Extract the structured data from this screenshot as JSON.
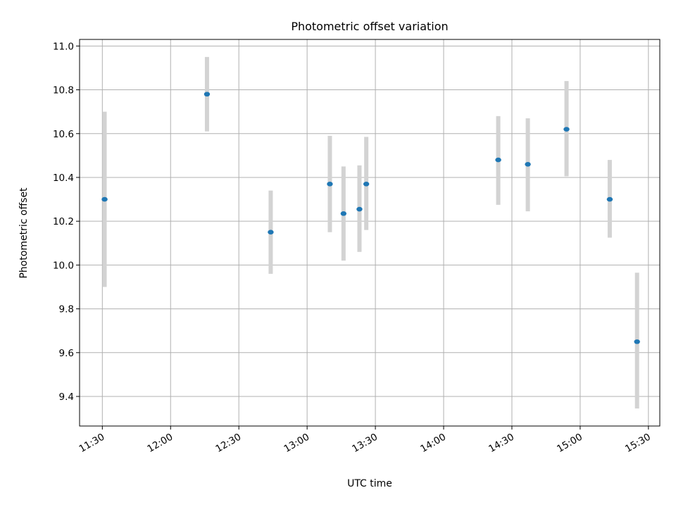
{
  "chart_data": {
    "type": "scatter",
    "title": "Photometric offset variation",
    "xlabel": "UTC time",
    "ylabel": "Photometric offset",
    "x_tick_labels": [
      "11:30",
      "12:00",
      "12:30",
      "13:00",
      "13:30",
      "14:00",
      "14:30",
      "15:00",
      "15:30"
    ],
    "y_tick_labels": [
      "9.4",
      "9.6",
      "9.8",
      "10.0",
      "10.2",
      "10.4",
      "10.6",
      "10.8",
      "11.0"
    ],
    "xlim": [
      "11:20",
      "15:35"
    ],
    "ylim": [
      9.265,
      11.03
    ],
    "grid": true,
    "colors": {
      "point": "#1f77b4",
      "errorbar": "#d3d3d3",
      "grid": "#b0b0b0"
    },
    "points": [
      {
        "x": "11:31",
        "y": 10.3,
        "yerr_low": 9.9,
        "yerr_high": 10.7
      },
      {
        "x": "12:16",
        "y": 10.78,
        "yerr_low": 10.61,
        "yerr_high": 10.95
      },
      {
        "x": "12:44",
        "y": 10.15,
        "yerr_low": 9.96,
        "yerr_high": 10.34
      },
      {
        "x": "13:10",
        "y": 10.37,
        "yerr_low": 10.15,
        "yerr_high": 10.59
      },
      {
        "x": "13:16",
        "y": 10.235,
        "yerr_low": 10.02,
        "yerr_high": 10.45
      },
      {
        "x": "13:23",
        "y": 10.255,
        "yerr_low": 10.06,
        "yerr_high": 10.455
      },
      {
        "x": "13:26",
        "y": 10.37,
        "yerr_low": 10.16,
        "yerr_high": 10.585
      },
      {
        "x": "14:24",
        "y": 10.48,
        "yerr_low": 10.275,
        "yerr_high": 10.68
      },
      {
        "x": "14:37",
        "y": 10.46,
        "yerr_low": 10.245,
        "yerr_high": 10.67
      },
      {
        "x": "14:54",
        "y": 10.62,
        "yerr_low": 10.405,
        "yerr_high": 10.84
      },
      {
        "x": "15:13",
        "y": 10.3,
        "yerr_low": 10.125,
        "yerr_high": 10.48
      },
      {
        "x": "15:25",
        "y": 9.65,
        "yerr_low": 9.345,
        "yerr_high": 9.965
      }
    ]
  }
}
